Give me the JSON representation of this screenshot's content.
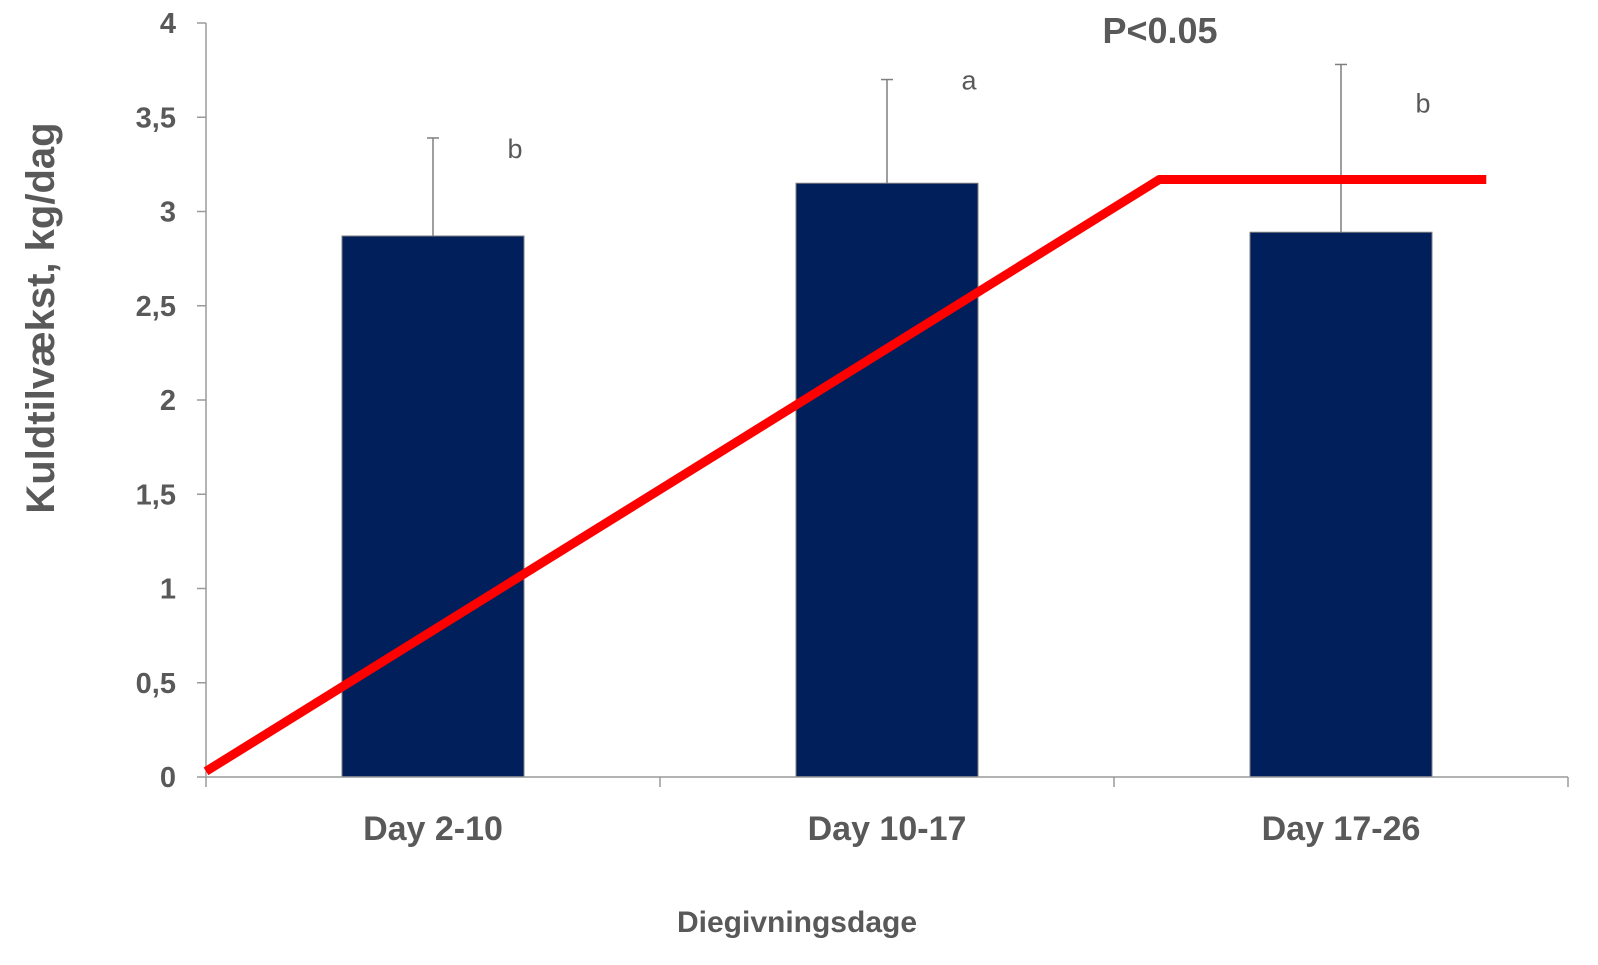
{
  "chart_data": {
    "type": "bar",
    "categories": [
      "Day 2-10",
      "Day 10-17",
      "Day 17-26"
    ],
    "values": [
      2.87,
      3.15,
      2.89
    ],
    "error_upper": [
      3.39,
      3.7,
      3.78
    ],
    "significance_letters": [
      "b",
      "a",
      "b"
    ],
    "annotation": "P<0.05",
    "xlabel": "Diegivningsdage",
    "ylabel": "Kuldtilvækst, kg/dag",
    "ylim": [
      0,
      4
    ],
    "yticks": [
      0,
      0.5,
      1,
      1.5,
      2,
      2.5,
      3,
      3.5,
      4
    ],
    "ytick_labels": [
      "0",
      "0,5",
      "1",
      "1,5",
      "2",
      "2,5",
      "3",
      "3,5",
      "4"
    ],
    "grid": false,
    "bar_color": "#001F5B",
    "overlay_line": {
      "color": "#FF0000",
      "x": [
        0,
        2.1,
        2.82
      ],
      "y": [
        0.03,
        3.17,
        3.17
      ]
    }
  }
}
